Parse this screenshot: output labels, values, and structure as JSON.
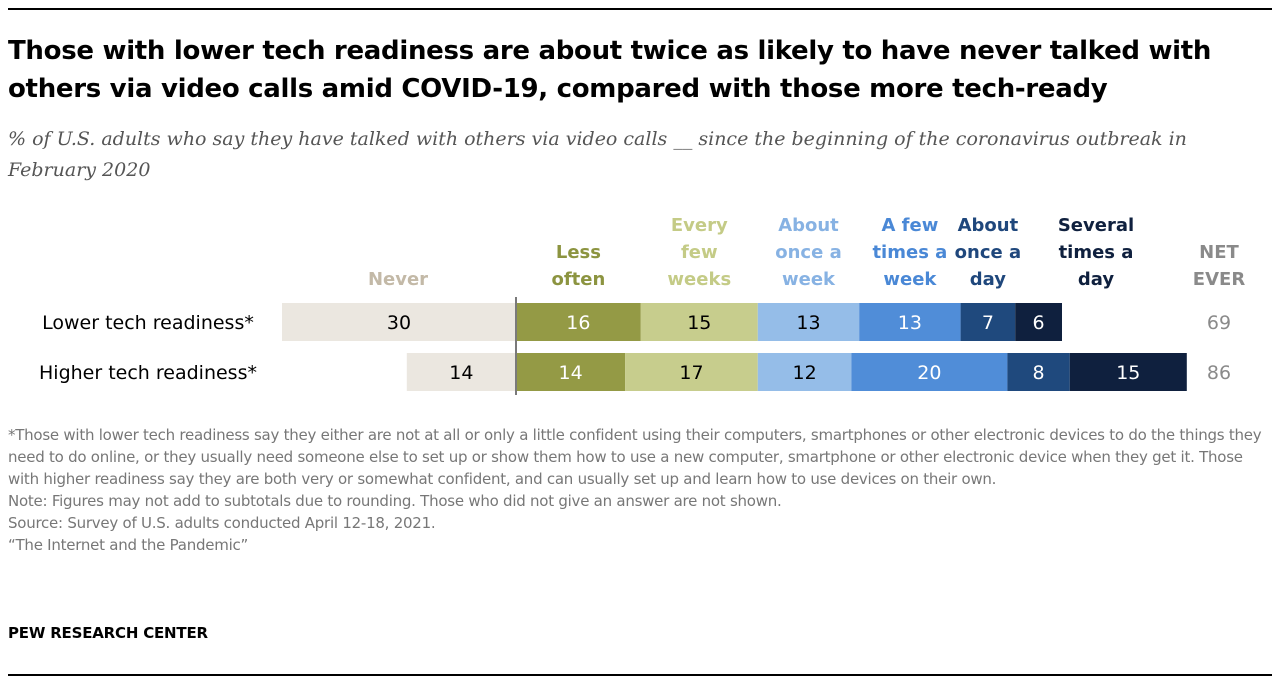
{
  "title": "Those with lower tech readiness are about twice as likely to have never talked with others via video calls amid COVID-19, compared with those more tech-ready",
  "subtitle": "% of U.S. adults who say they have talked with others via video calls __ since the beginning of the coronavirus outbreak in February 2020",
  "chart_data": {
    "type": "bar",
    "orientation": "horizontal-diverging",
    "categories": [
      "Lower tech readiness*",
      "Higher tech readiness*"
    ],
    "series": [
      {
        "name": "Never",
        "lines": [
          "Never"
        ],
        "values": [
          30,
          14
        ],
        "color": "#ebe7e0",
        "text_color": "#c3b9a7",
        "value_color": "#000000",
        "side": "left"
      },
      {
        "name": "Less often",
        "lines": [
          "Less",
          "often"
        ],
        "values": [
          16,
          14
        ],
        "color": "#949a45",
        "text_color": "#8c9440",
        "value_color": "#ffffff",
        "side": "right"
      },
      {
        "name": "Every few weeks",
        "lines": [
          "Every",
          "few",
          "weeks"
        ],
        "values": [
          15,
          17
        ],
        "color": "#c7cd8d",
        "text_color": "#c4cb86",
        "value_color": "#000000",
        "side": "right"
      },
      {
        "name": "About once a week",
        "lines": [
          "About",
          "once a",
          "week"
        ],
        "values": [
          13,
          12
        ],
        "color": "#95bde8",
        "text_color": "#87b2e3",
        "value_color": "#000000",
        "side": "right"
      },
      {
        "name": "A few times a week",
        "lines": [
          "A few",
          "times a",
          "week"
        ],
        "values": [
          13,
          20
        ],
        "color": "#508dd8",
        "text_color": "#4a88d6",
        "value_color": "#ffffff",
        "side": "right"
      },
      {
        "name": "About once a day",
        "lines": [
          "About",
          "once a",
          "day"
        ],
        "values": [
          7,
          8
        ],
        "color": "#1f497d",
        "text_color": "#1f477c",
        "value_color": "#ffffff",
        "side": "right"
      },
      {
        "name": "Several times a day",
        "lines": [
          "Several",
          "times a",
          "day"
        ],
        "values": [
          6,
          15
        ],
        "color": "#0f203e",
        "text_color": "#0f203e",
        "value_color": "#ffffff",
        "side": "right"
      }
    ],
    "net": {
      "name": "NET EVER",
      "lines": [
        "NET",
        "EVER"
      ],
      "values": [
        69,
        86
      ],
      "text_color": "#8a8a8a"
    }
  },
  "notes": [
    "*Those with lower tech readiness say they either are not at all or only a little confident using their computers, smartphones or other electronic devices to do the things they need to do online, or they usually need someone else to set up or show them how to use a new computer, smartphone or other electronic device when they get it. Those with higher readiness say they are both very or somewhat confident, and can usually set up and learn how to use devices on their own.",
    "Note: Figures may not add to subtotals due to rounding. Those who did not give an answer are not shown.",
    "Source: Survey of U.S. adults conducted April 12-18, 2021.",
    "“The Internet and the Pandemic”"
  ],
  "branding": "PEW RESEARCH CENTER"
}
